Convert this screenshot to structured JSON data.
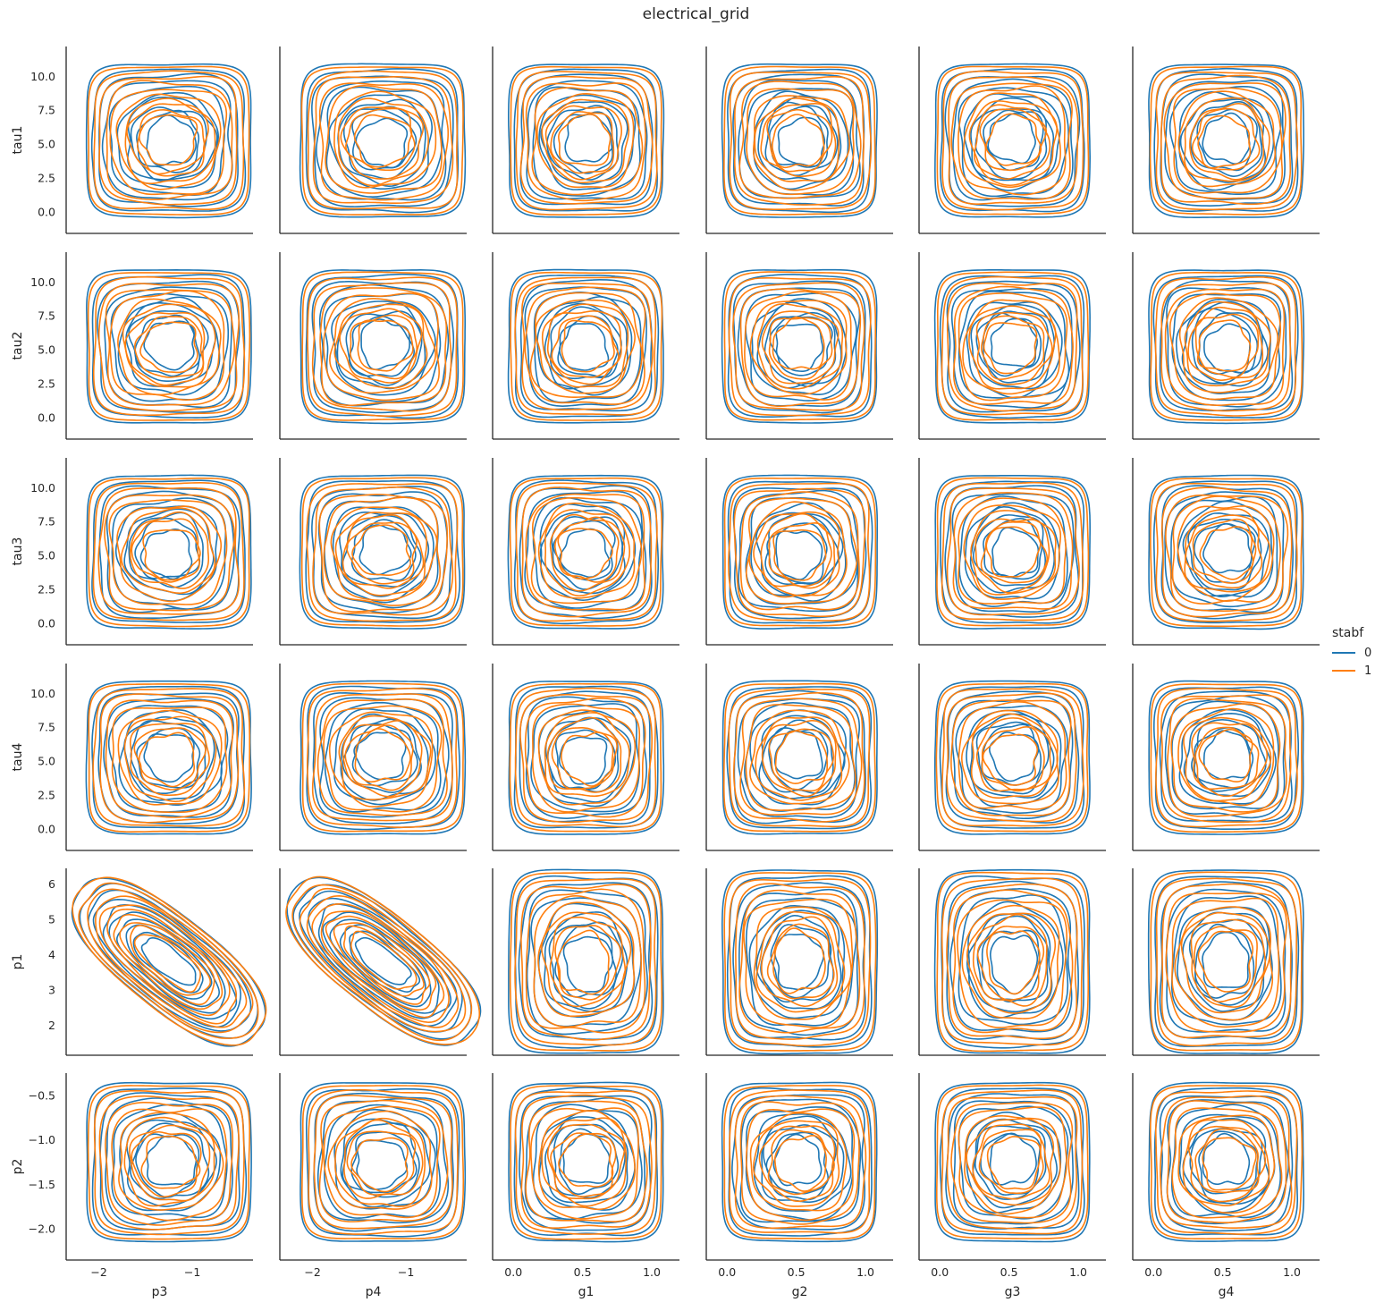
{
  "chart_data": {
    "type": "kde_contour_grid",
    "title": "electrical_grid",
    "legend": {
      "title": "stabf",
      "placement": "right",
      "entries": [
        {
          "label": "0",
          "color": "#1f77b4"
        },
        {
          "label": "1",
          "color": "#ff7f0e"
        }
      ]
    },
    "rows": [
      {
        "variable": "tau1",
        "range": [
          0.5,
          10
        ],
        "ylim": [
          -1.6,
          12.2
        ],
        "ticks": [
          0.0,
          2.5,
          5.0,
          7.5,
          10.0
        ],
        "tick_labels": [
          "0.0",
          "2.5",
          "5.0",
          "7.5",
          "10.0"
        ]
      },
      {
        "variable": "tau2",
        "range": [
          0.5,
          10
        ],
        "ylim": [
          -1.6,
          12.2
        ],
        "ticks": [
          0.0,
          2.5,
          5.0,
          7.5,
          10.0
        ],
        "tick_labels": [
          "0.0",
          "2.5",
          "5.0",
          "7.5",
          "10.0"
        ]
      },
      {
        "variable": "tau3",
        "range": [
          0.5,
          10
        ],
        "ylim": [
          -1.6,
          12.2
        ],
        "ticks": [
          0.0,
          2.5,
          5.0,
          7.5,
          10.0
        ],
        "tick_labels": [
          "0.0",
          "2.5",
          "5.0",
          "7.5",
          "10.0"
        ]
      },
      {
        "variable": "tau4",
        "range": [
          0.5,
          10
        ],
        "ylim": [
          -1.6,
          12.2
        ],
        "ticks": [
          0.0,
          2.5,
          5.0,
          7.5,
          10.0
        ],
        "tick_labels": [
          "0.0",
          "2.5",
          "5.0",
          "7.5",
          "10.0"
        ]
      },
      {
        "variable": "p1",
        "range": [
          1.6,
          6.0
        ],
        "ylim": [
          1.15,
          6.45
        ],
        "ticks": [
          2,
          3,
          4,
          5,
          6
        ],
        "tick_labels": [
          "2",
          "3",
          "4",
          "5",
          "6"
        ]
      },
      {
        "variable": "p2",
        "range": [
          -2.0,
          -0.5
        ],
        "ylim": [
          -2.35,
          -0.25
        ],
        "ticks": [
          -2.0,
          -1.5,
          -1.0,
          -0.5
        ],
        "tick_labels": [
          "−2.0",
          "−1.5",
          "−1.0",
          "−0.5"
        ]
      }
    ],
    "columns": [
      {
        "variable": "p3",
        "range": [
          -2.0,
          -0.5
        ],
        "xlim": [
          -2.35,
          -0.35
        ],
        "ticks": [
          -2,
          -1
        ],
        "tick_labels": [
          "−2",
          "−1"
        ]
      },
      {
        "variable": "p4",
        "range": [
          -2.0,
          -0.5
        ],
        "xlim": [
          -2.35,
          -0.35
        ],
        "ticks": [
          -2,
          -1
        ],
        "tick_labels": [
          "−2",
          "−1"
        ]
      },
      {
        "variable": "g1",
        "range": [
          0.05,
          1.0
        ],
        "xlim": [
          -0.15,
          1.2
        ],
        "ticks": [
          0.0,
          0.5,
          1.0
        ],
        "tick_labels": [
          "0.0",
          "0.5",
          "1.0"
        ]
      },
      {
        "variable": "g2",
        "range": [
          0.05,
          1.0
        ],
        "xlim": [
          -0.15,
          1.2
        ],
        "ticks": [
          0.0,
          0.5,
          1.0
        ],
        "tick_labels": [
          "0.0",
          "0.5",
          "1.0"
        ]
      },
      {
        "variable": "g3",
        "range": [
          0.05,
          1.0
        ],
        "xlim": [
          -0.15,
          1.2
        ],
        "ticks": [
          0.0,
          0.5,
          1.0
        ],
        "tick_labels": [
          "0.0",
          "0.5",
          "1.0"
        ]
      },
      {
        "variable": "g4",
        "range": [
          0.05,
          1.0
        ],
        "xlim": [
          -0.15,
          1.2
        ],
        "ticks": [
          0.0,
          0.5,
          1.0
        ],
        "tick_labels": [
          "0.0",
          "0.5",
          "1.0"
        ]
      }
    ],
    "grid": false,
    "contour_levels": 10
  }
}
